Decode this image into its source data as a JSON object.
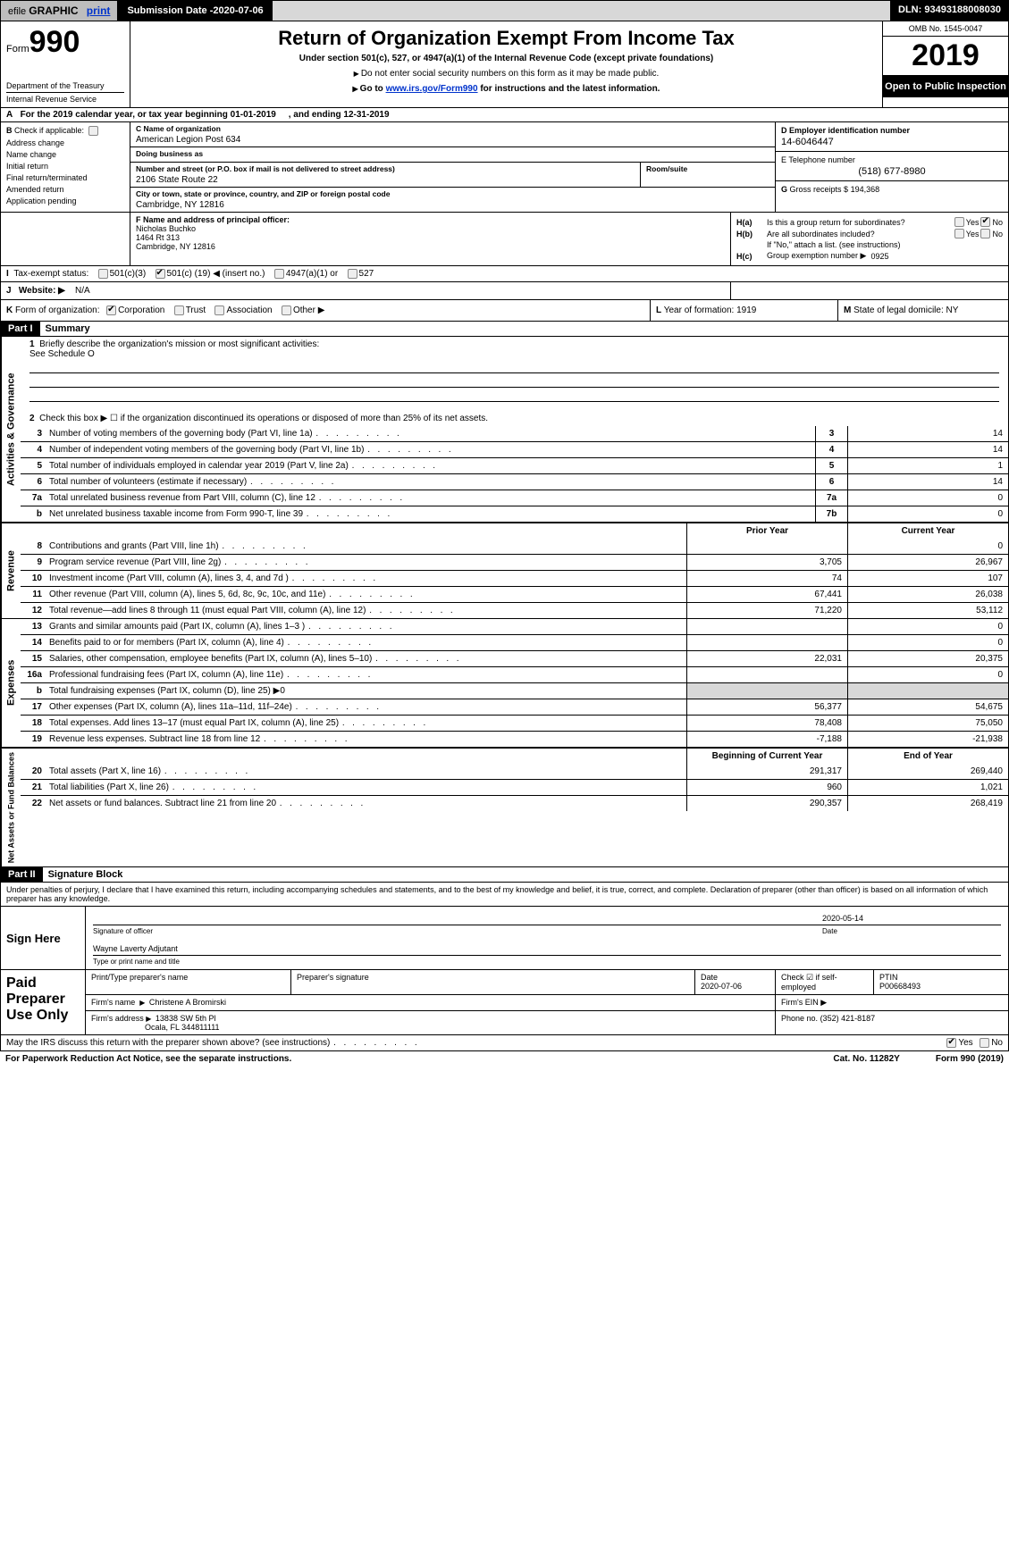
{
  "topbar": {
    "efile_prefix": "efile",
    "efile_label": "GRAPHIC",
    "efile_print": "print",
    "submission_label": "Submission Date - ",
    "submission_date": "2020-07-06",
    "dln_label": "DLN: ",
    "dln": "93493188008030"
  },
  "header": {
    "form_prefix": "Form",
    "form_number": "990",
    "title": "Return of Organization Exempt From Income Tax",
    "subtitle": "Under section 501(c), 527, or 4947(a)(1) of the Internal Revenue Code (except private foundations)",
    "ssn_warn": "Do not enter social security numbers on this form as it may be made public.",
    "goto_prefix": "Go to ",
    "goto_link": "www.irs.gov/Form990",
    "goto_suffix": " for instructions and the latest information.",
    "dept1": "Department of the Treasury",
    "dept2": "Internal Revenue Service",
    "omb": "OMB No. 1545-0047",
    "year": "2019",
    "open": "Open to Public Inspection"
  },
  "period": {
    "label_a": "A",
    "text1": "For the 2019 calendar year, or tax year beginning ",
    "begin": "01-01-2019",
    "text2": ", and ending ",
    "end": "12-31-2019"
  },
  "B": {
    "label": "B",
    "check_label": "Check if applicable:",
    "opts": [
      "Address change",
      "Name change",
      "Initial return",
      "Final return/terminated",
      "Amended return",
      "Application pending"
    ]
  },
  "C": {
    "name_label": "C Name of organization",
    "name": "American Legion Post 634",
    "dba_label": "Doing business as",
    "dba": "",
    "addr_label": "Number and street (or P.O. box if mail is not delivered to street address)",
    "addr": "2106 State Route 22",
    "room_label": "Room/suite",
    "room": "",
    "city_label": "City or town, state or province, country, and ZIP or foreign postal code",
    "city": "Cambridge, NY  12816"
  },
  "D": {
    "label": "D Employer identification number",
    "value": "14-6046447"
  },
  "E": {
    "label": "E Telephone number",
    "value": "(518) 677-8980"
  },
  "G": {
    "label": "G",
    "text": "Gross receipts $",
    "value": "194,368"
  },
  "F": {
    "label": "F  Name and address of principal officer:",
    "name": "Nicholas Buchko",
    "addr1": "1464 Rt 313",
    "addr2": "Cambridge, NY   12816"
  },
  "H": {
    "a_label": "H(a)",
    "a_text": "Is this a group return for subordinates?",
    "a_yes": "Yes",
    "a_no": "No",
    "a_checked": "no",
    "b_label": "H(b)",
    "b_text": "Are all subordinates included?",
    "b_yes": "Yes",
    "b_no": "No",
    "b_note": "If \"No,\" attach a list. (see instructions)",
    "c_label": "H(c)",
    "c_text": "Group exemption number ▶",
    "c_value": "0925"
  },
  "I": {
    "label": "I",
    "text": "Tax-exempt status:",
    "o1": "501(c)(3)",
    "o2a": "501(c) (",
    "o2n": "19",
    "o2b": ") ◀ (insert no.)",
    "o3": "4947(a)(1) or",
    "o4": "527",
    "checked": "o2"
  },
  "J": {
    "label": "J",
    "text": "Website: ▶",
    "value": "N/A"
  },
  "K": {
    "label": "K",
    "text": "Form of organization:",
    "o1": "Corporation",
    "o2": "Trust",
    "o3": "Association",
    "o4": "Other ▶",
    "checked": "o1"
  },
  "L": {
    "label": "L",
    "text": "Year of formation:",
    "value": "1919"
  },
  "M": {
    "label": "M",
    "text": "State of legal domicile:",
    "value": "NY"
  },
  "partI": {
    "tag": "Part I",
    "title": "Summary"
  },
  "summary": {
    "side_activities": "Activities & Governance",
    "side_revenue": "Revenue",
    "side_expenses": "Expenses",
    "side_net": "Net Assets or Fund Balances",
    "l1_label": "1",
    "l1_text": "Briefly describe the organization's mission or most significant activities:",
    "l1_value": "See Schedule O",
    "l2_label": "2",
    "l2_text": "Check this box ▶ ☐  if the organization discontinued its operations or disposed of more than 25% of its net assets.",
    "prior_hdr": "Prior Year",
    "current_hdr": "Current Year",
    "boy_hdr": "Beginning of Current Year",
    "eoy_hdr": "End of Year",
    "rows_single": [
      {
        "n": "3",
        "t": "Number of voting members of the governing body (Part VI, line 1a)",
        "c": "3",
        "v": "14"
      },
      {
        "n": "4",
        "t": "Number of independent voting members of the governing body (Part VI, line 1b)",
        "c": "4",
        "v": "14"
      },
      {
        "n": "5",
        "t": "Total number of individuals employed in calendar year 2019 (Part V, line 2a)",
        "c": "5",
        "v": "1"
      },
      {
        "n": "6",
        "t": "Total number of volunteers (estimate if necessary)",
        "c": "6",
        "v": "14"
      },
      {
        "n": "7a",
        "t": "Total unrelated business revenue from Part VIII, column (C), line 12",
        "c": "7a",
        "v": "0"
      },
      {
        "n": "b",
        "t": "Net unrelated business taxable income from Form 990-T, line 39",
        "c": "7b",
        "v": "0"
      }
    ],
    "rows_revenue": [
      {
        "n": "8",
        "t": "Contributions and grants (Part VIII, line 1h)",
        "p": "",
        "c": "0"
      },
      {
        "n": "9",
        "t": "Program service revenue (Part VIII, line 2g)",
        "p": "3,705",
        "c": "26,967"
      },
      {
        "n": "10",
        "t": "Investment income (Part VIII, column (A), lines 3, 4, and 7d )",
        "p": "74",
        "c": "107"
      },
      {
        "n": "11",
        "t": "Other revenue (Part VIII, column (A), lines 5, 6d, 8c, 9c, 10c, and 11e)",
        "p": "67,441",
        "c": "26,038"
      },
      {
        "n": "12",
        "t": "Total revenue—add lines 8 through 11 (must equal Part VIII, column (A), line 12)",
        "p": "71,220",
        "c": "53,112"
      }
    ],
    "rows_expenses": [
      {
        "n": "13",
        "t": "Grants and similar amounts paid (Part IX, column (A), lines 1–3 )",
        "p": "",
        "c": "0"
      },
      {
        "n": "14",
        "t": "Benefits paid to or for members (Part IX, column (A), line 4)",
        "p": "",
        "c": "0"
      },
      {
        "n": "15",
        "t": "Salaries, other compensation, employee benefits (Part IX, column (A), lines 5–10)",
        "p": "22,031",
        "c": "20,375"
      },
      {
        "n": "16a",
        "t": "Professional fundraising fees (Part IX, column (A), line 11e)",
        "p": "",
        "c": "0"
      },
      {
        "n": "b",
        "t": "Total fundraising expenses (Part IX, column (D), line 25) ▶0",
        "p": "grey",
        "c": "grey"
      },
      {
        "n": "17",
        "t": "Other expenses (Part IX, column (A), lines 11a–11d, 11f–24e)",
        "p": "56,377",
        "c": "54,675"
      },
      {
        "n": "18",
        "t": "Total expenses. Add lines 13–17 (must equal Part IX, column (A), line 25)",
        "p": "78,408",
        "c": "75,050"
      },
      {
        "n": "19",
        "t": "Revenue less expenses. Subtract line 18 from line 12",
        "p": "-7,188",
        "c": "-21,938"
      }
    ],
    "rows_net": [
      {
        "n": "20",
        "t": "Total assets (Part X, line 16)",
        "p": "291,317",
        "c": "269,440"
      },
      {
        "n": "21",
        "t": "Total liabilities (Part X, line 26)",
        "p": "960",
        "c": "1,021"
      },
      {
        "n": "22",
        "t": "Net assets or fund balances. Subtract line 21 from line 20",
        "p": "290,357",
        "c": "268,419"
      }
    ]
  },
  "partII": {
    "tag": "Part II",
    "title": "Signature Block"
  },
  "perjury": "Under penalties of perjury, I declare that I have examined this return, including accompanying schedules and statements, and to the best of my knowledge and belief, it is true, correct, and complete. Declaration of preparer (other than officer) is based on all information of which preparer has any knowledge.",
  "sign": {
    "label": "Sign Here",
    "sig_label": "Signature of officer",
    "date_label": "Date",
    "date": "2020-05-14",
    "name": "Wayne Laverty  Adjutant",
    "name_label": "Type or print name and title"
  },
  "preparer": {
    "label": "Paid Preparer Use Only",
    "h_name": "Print/Type preparer's name",
    "h_sig": "Preparer's signature",
    "h_date": "Date",
    "h_check": "Check ☑ if self-employed",
    "h_ptin": "PTIN",
    "date": "2020-07-06",
    "ptin": "P00668493",
    "firm_name_l": "Firm's name",
    "firm_name": "Christene A Bromirski",
    "firm_ein_l": "Firm's EIN ▶",
    "firm_ein": "",
    "firm_addr_l": "Firm's address",
    "firm_addr1": "13838 SW 5th Pl",
    "firm_addr2": "Ocala, FL   344811111",
    "phone_l": "Phone no.",
    "phone": "(352) 421-8187"
  },
  "discuss": {
    "text": "May the IRS discuss this return with the preparer shown above? (see instructions)",
    "yes": "Yes",
    "no": "No",
    "checked": "yes"
  },
  "footer": {
    "left": "For Paperwork Reduction Act Notice, see the separate instructions.",
    "cat": "Cat. No. 11282Y",
    "form": "Form 990 (2019)"
  }
}
